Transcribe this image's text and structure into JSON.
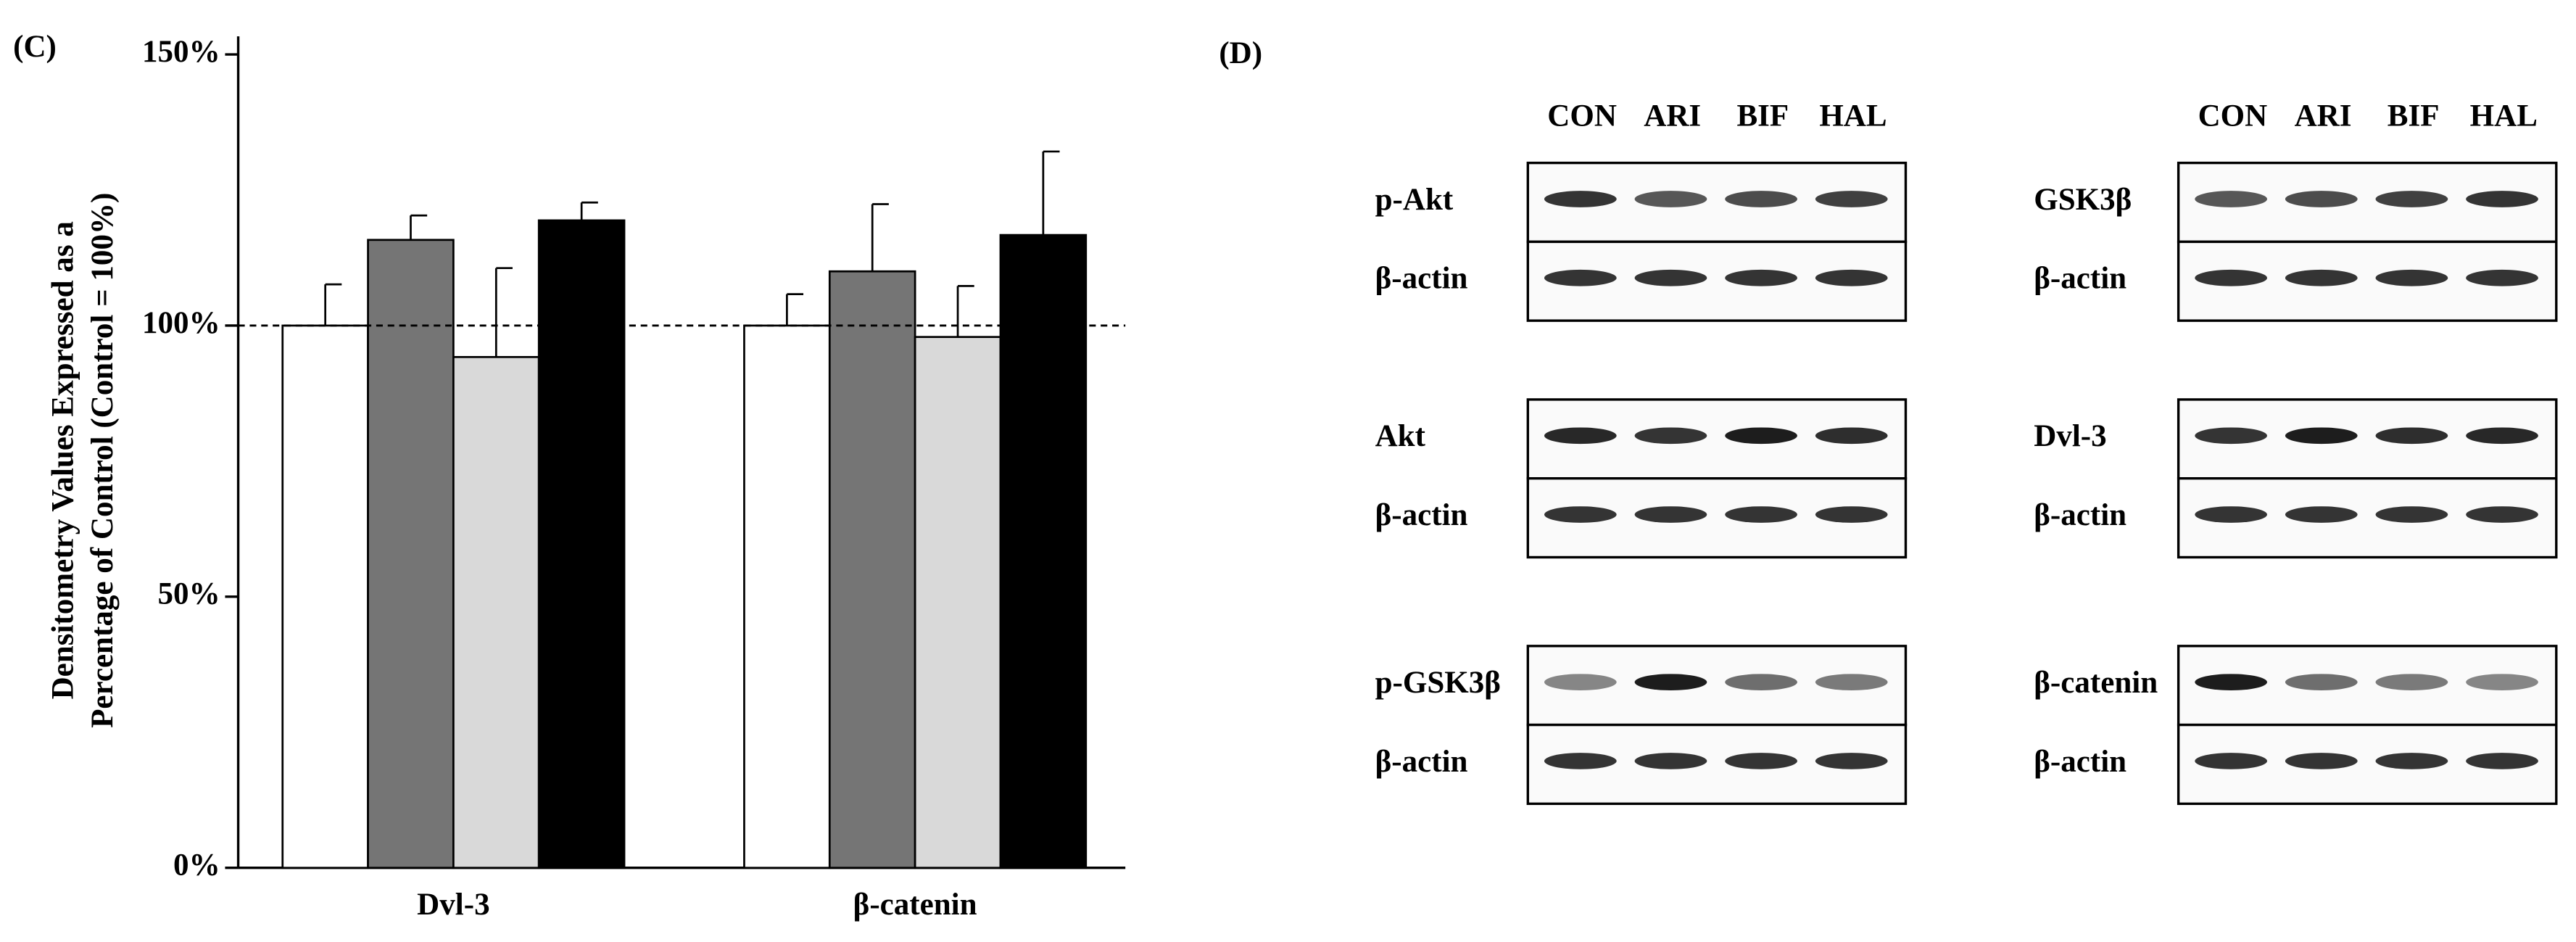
{
  "chart_data": {
    "type": "bar",
    "panel_label": "(C)",
    "y_label": [
      "Densitometry Values Expressed as a",
      "Percentage of Control (Control = 100%)"
    ],
    "categories": [
      "Dvl-3",
      "β-catenin"
    ],
    "series": [
      {
        "color": "#ffffff",
        "values": [
          100,
          100
        ],
        "errors": [
          7.6,
          5.8
        ]
      },
      {
        "color": "#757575",
        "values": [
          115.8,
          110
        ],
        "errors": [
          4.5,
          12.4
        ]
      },
      {
        "color": "#d9d9d9",
        "values": [
          94.2,
          97.9
        ],
        "errors": [
          16.4,
          9.4
        ]
      },
      {
        "color": "#000000",
        "values": [
          119.4,
          116.7
        ],
        "errors": [
          3.3,
          15.4
        ]
      }
    ],
    "ylim": [
      0,
      150
    ],
    "yticks": [
      {
        "value": 0,
        "label": "0%"
      },
      {
        "value": 50,
        "label": "50%"
      },
      {
        "value": 100,
        "label": "100%"
      },
      {
        "value": 150,
        "label": "150%"
      }
    ],
    "reference_line": 100
  },
  "blot_panel": {
    "label": "(D)",
    "groups": [
      {
        "lanes": [
          "CON",
          "ARI",
          "BIF",
          "HAL"
        ],
        "blots": [
          [
            "p-Akt",
            "β-actin"
          ],
          [
            "Akt",
            "β-actin"
          ],
          [
            "p-GSK3β",
            "β-actin"
          ]
        ]
      },
      {
        "lanes": [
          "CON",
          "ARI",
          "BIF",
          "HAL"
        ],
        "blots": [
          [
            "GSK3β",
            "β-actin"
          ],
          [
            "Dvl-3",
            "β-actin"
          ],
          [
            "β-catenin",
            "β-actin"
          ]
        ]
      }
    ]
  }
}
